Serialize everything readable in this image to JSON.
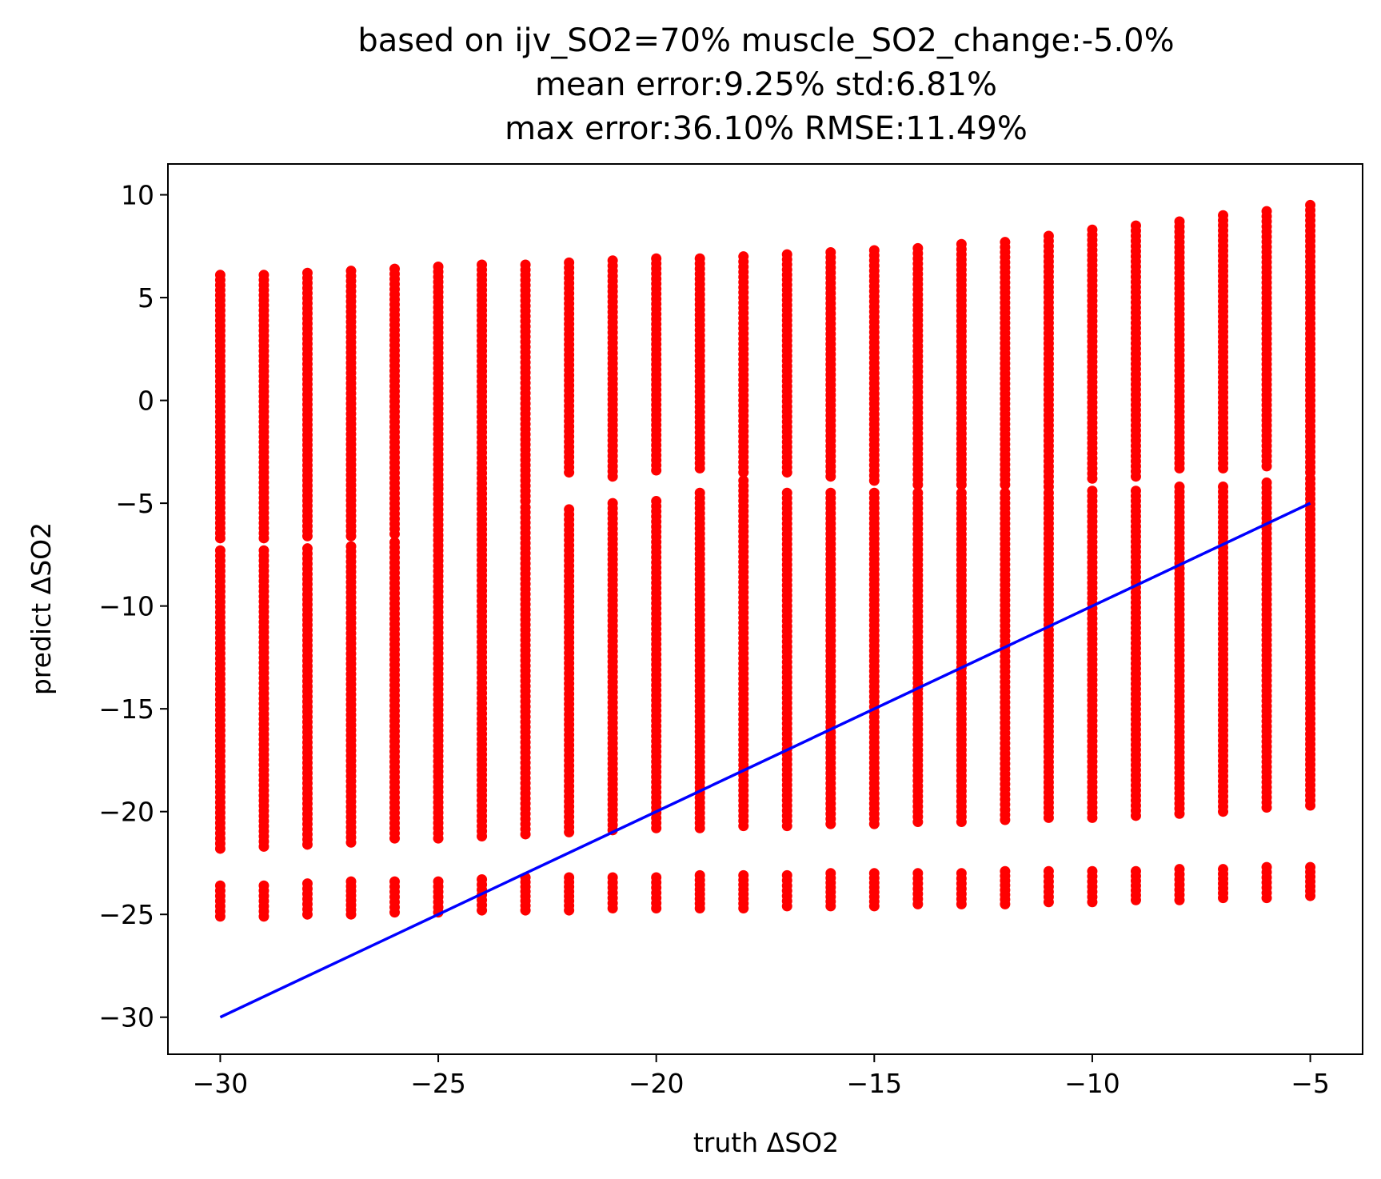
{
  "chart_data": {
    "type": "scatter",
    "title_lines": [
      "based on ijv_SO2=70% muscle_SO2_change:-5.0%",
      "mean error:9.25% std:6.81%",
      "max error:36.10% RMSE:11.49%"
    ],
    "xlabel": "truth ΔSO2",
    "ylabel": "predict ΔSO2",
    "xlim": [
      -31.2,
      -3.8
    ],
    "ylim": [
      -31.8,
      11.5
    ],
    "xticks": [
      -30,
      -25,
      -20,
      -15,
      -10,
      -5
    ],
    "yticks": [
      -30,
      -25,
      -20,
      -15,
      -10,
      -5,
      0,
      5,
      10
    ],
    "xtick_labels": [
      "−30",
      "−25",
      "−20",
      "−15",
      "−10",
      "−5"
    ],
    "ytick_labels": [
      "−30",
      "−25",
      "−20",
      "−15",
      "−10",
      "−5",
      "0",
      "5",
      "10"
    ],
    "grid": false,
    "legend": "none",
    "series": [
      {
        "type": "scatter",
        "color": "#ff0000",
        "x": [
          -30,
          -29,
          -28,
          -27,
          -26,
          -25,
          -24,
          -23,
          -22,
          -21,
          -20,
          -19,
          -18,
          -17,
          -16,
          -15,
          -14,
          -13,
          -12,
          -11,
          -10,
          -9,
          -8,
          -7,
          -6,
          -5
        ],
        "clusters": [
          {
            "name": "upper",
            "y_min": [
              -6.7,
              -6.7,
              -6.6,
              -6.6,
              -6.5,
              -4.1,
              -0.8,
              -4.9,
              -3.5,
              -3.7,
              -3.4,
              -3.3,
              -3.5,
              -3.5,
              -3.7,
              -3.9,
              -4.1,
              -4.1,
              -4.1,
              -4.2,
              -3.8,
              -3.7,
              -3.3,
              -3.3,
              -3.2,
              -3.5
            ],
            "y_max": [
              6.1,
              6.1,
              6.2,
              6.3,
              6.4,
              6.5,
              6.6,
              6.6,
              6.7,
              6.8,
              6.9,
              6.9,
              7.0,
              7.1,
              7.2,
              7.3,
              7.4,
              7.6,
              7.7,
              8.0,
              8.3,
              8.5,
              8.7,
              9.0,
              9.2,
              9.5
            ]
          },
          {
            "name": "middle",
            "y_min": [
              -21.8,
              -21.7,
              -21.6,
              -21.5,
              -21.3,
              -21.3,
              -21.2,
              -21.1,
              -21.0,
              -20.9,
              -20.8,
              -20.8,
              -20.7,
              -20.7,
              -20.6,
              -20.6,
              -20.5,
              -20.5,
              -20.4,
              -20.3,
              -20.3,
              -20.2,
              -20.1,
              -20.0,
              -19.8,
              -19.7
            ],
            "y_max": [
              -7.3,
              -7.3,
              -7.2,
              -7.1,
              -6.9,
              -4.3,
              -0.8,
              -5.2,
              -5.3,
              -5.0,
              -4.9,
              -4.5,
              -3.9,
              -4.5,
              -4.5,
              -4.5,
              -4.5,
              -4.5,
              -4.5,
              -4.5,
              -4.4,
              -4.4,
              -4.2,
              -4.2,
              -4.0,
              -3.8
            ]
          },
          {
            "name": "lower",
            "y_min": [
              -25.1,
              -25.1,
              -25.0,
              -25.0,
              -24.9,
              -24.9,
              -24.8,
              -24.8,
              -24.8,
              -24.7,
              -24.7,
              -24.7,
              -24.7,
              -24.6,
              -24.6,
              -24.6,
              -24.5,
              -24.5,
              -24.5,
              -24.4,
              -24.4,
              -24.3,
              -24.3,
              -24.2,
              -24.2,
              -24.1
            ],
            "y_max": [
              -23.6,
              -23.6,
              -23.5,
              -23.4,
              -23.4,
              -23.4,
              -23.3,
              -23.2,
              -23.2,
              -23.2,
              -23.2,
              -23.1,
              -23.1,
              -23.1,
              -23.0,
              -23.0,
              -23.0,
              -23.0,
              -22.9,
              -22.9,
              -22.9,
              -22.9,
              -22.8,
              -22.8,
              -22.7,
              -22.7
            ]
          }
        ]
      },
      {
        "type": "line",
        "color": "#0000ff",
        "x": [
          -30,
          -5
        ],
        "y": [
          -30,
          -5
        ]
      }
    ]
  }
}
